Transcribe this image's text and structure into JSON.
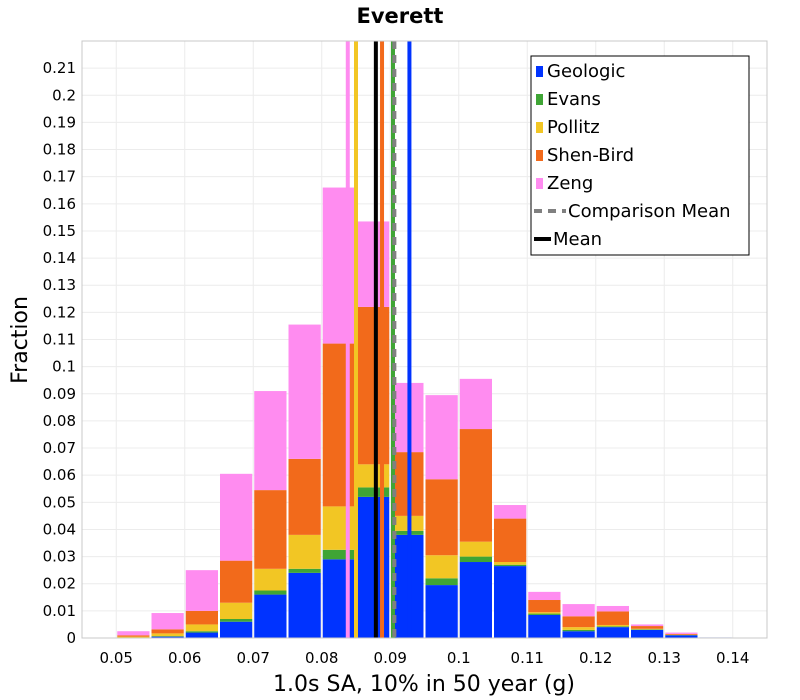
{
  "chart_data": {
    "type": "bar",
    "stacked": true,
    "title": "Everett",
    "xlabel": "1.0s SA, 10% in 50 year (g)",
    "ylabel": "Fraction",
    "xlim": [
      0.045,
      0.145
    ],
    "ylim": [
      0,
      0.22
    ],
    "bin_width": 0.005,
    "x_ticks": [
      0.05,
      0.06,
      0.07,
      0.08,
      0.09,
      0.1,
      0.11,
      0.12,
      0.13,
      0.14
    ],
    "y_ticks": [
      0,
      0.01,
      0.02,
      0.03,
      0.04,
      0.05,
      0.06,
      0.07,
      0.08,
      0.09,
      0.1,
      0.11,
      0.12,
      0.13,
      0.14,
      0.15,
      0.16,
      0.17,
      0.18,
      0.19,
      0.2,
      0.21
    ],
    "x": [
      0.0525,
      0.0575,
      0.0625,
      0.0675,
      0.0725,
      0.0775,
      0.0825,
      0.0875,
      0.0925,
      0.0975,
      0.1025,
      0.1075,
      0.1125,
      0.1175,
      0.1225,
      0.1275,
      0.1325,
      0.1375
    ],
    "series": [
      {
        "name": "Geologic",
        "color": "#0033ff",
        "values": [
          0.0,
          0.0005,
          0.002,
          0.006,
          0.016,
          0.024,
          0.029,
          0.052,
          0.038,
          0.0195,
          0.028,
          0.0265,
          0.0085,
          0.0025,
          0.004,
          0.003,
          0.001,
          0.0002
        ]
      },
      {
        "name": "Evans",
        "color": "#3fa535",
        "values": [
          0.0,
          0.0002,
          0.0005,
          0.001,
          0.0015,
          0.0015,
          0.0035,
          0.0035,
          0.0015,
          0.0025,
          0.002,
          0.0005,
          0.0005,
          0.0005,
          0.0003,
          0.0002,
          0.0001,
          0.0
        ]
      },
      {
        "name": "Pollitz",
        "color": "#f2c624",
        "values": [
          0.0005,
          0.001,
          0.0025,
          0.006,
          0.008,
          0.0125,
          0.016,
          0.0085,
          0.0055,
          0.0085,
          0.0055,
          0.001,
          0.0005,
          0.001,
          0.0005,
          0.0002,
          0.0001,
          0.0
        ]
      },
      {
        "name": "Shen-Bird",
        "color": "#f26a1b",
        "values": [
          0.0005,
          0.0015,
          0.005,
          0.0155,
          0.029,
          0.028,
          0.06,
          0.058,
          0.0235,
          0.028,
          0.0415,
          0.016,
          0.0045,
          0.004,
          0.005,
          0.001,
          0.0003,
          0.0
        ]
      },
      {
        "name": "Zeng",
        "color": "#ff8cf0",
        "values": [
          0.0015,
          0.006,
          0.015,
          0.032,
          0.0365,
          0.0495,
          0.0575,
          0.0315,
          0.0255,
          0.031,
          0.0185,
          0.005,
          0.003,
          0.0045,
          0.002,
          0.0006,
          0.0005,
          0.0
        ]
      }
    ],
    "vertical_lines": [
      {
        "name": "Geologic",
        "x": 0.0928,
        "color": "#0033ff",
        "style": "solid"
      },
      {
        "name": "Evans",
        "x": 0.0904,
        "color": "#3fa535",
        "style": "solid"
      },
      {
        "name": "Pollitz",
        "x": 0.085,
        "color": "#f2c624",
        "style": "solid"
      },
      {
        "name": "Shen-Bird",
        "x": 0.0888,
        "color": "#f26a1b",
        "style": "solid"
      },
      {
        "name": "Zeng",
        "x": 0.0838,
        "color": "#ff8cf0",
        "style": "solid"
      },
      {
        "name": "Comparison Mean",
        "x": 0.0906,
        "color": "#808080",
        "style": "dashed"
      },
      {
        "name": "Mean",
        "x": 0.0879,
        "color": "#000000",
        "style": "solid"
      }
    ],
    "legend": {
      "position": "top-right",
      "entries": [
        {
          "label": "Geologic",
          "color": "#0033ff",
          "kind": "box"
        },
        {
          "label": "Evans",
          "color": "#3fa535",
          "kind": "box"
        },
        {
          "label": "Pollitz",
          "color": "#f2c624",
          "kind": "box"
        },
        {
          "label": "Shen-Bird",
          "color": "#f26a1b",
          "kind": "box"
        },
        {
          "label": "Zeng",
          "color": "#ff8cf0",
          "kind": "box"
        },
        {
          "label": "Comparison Mean",
          "color": "#808080",
          "kind": "dashed-line"
        },
        {
          "label": "Mean",
          "color": "#000000",
          "kind": "line"
        }
      ]
    },
    "grid": true
  }
}
